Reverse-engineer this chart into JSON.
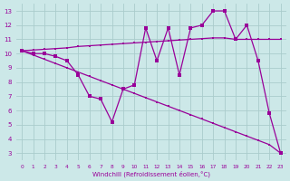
{
  "line_zigzag": [
    10.2,
    10.0,
    10.0,
    9.8,
    9.5,
    8.5,
    7.0,
    6.8,
    5.2,
    7.5,
    7.8,
    11.8,
    9.5,
    11.8,
    8.5,
    11.8,
    12.0,
    13.0,
    13.0,
    11.0,
    12.0,
    9.5,
    5.8,
    3.0
  ],
  "line_upper": [
    10.2,
    10.25,
    10.3,
    10.35,
    10.4,
    10.5,
    10.55,
    10.6,
    10.65,
    10.7,
    10.75,
    10.8,
    10.85,
    10.9,
    10.95,
    11.0,
    11.05,
    11.1,
    11.1,
    11.0,
    11.0,
    11.0,
    11.0,
    11.0
  ],
  "line_diagonal": [
    10.2,
    9.9,
    9.6,
    9.3,
    9.0,
    8.7,
    8.4,
    8.1,
    7.8,
    7.5,
    7.2,
    6.9,
    6.6,
    6.3,
    6.0,
    5.7,
    5.4,
    5.1,
    4.8,
    4.5,
    4.2,
    3.9,
    3.6,
    3.0
  ],
  "x": [
    0,
    1,
    2,
    3,
    4,
    5,
    6,
    7,
    8,
    9,
    10,
    11,
    12,
    13,
    14,
    15,
    16,
    17,
    18,
    19,
    20,
    21,
    22,
    23
  ],
  "line_color": "#990099",
  "bg_color": "#cce8e8",
  "grid_color": "#aacccc",
  "xlabel": "Windchill (Refroidissement éolien,°C)",
  "ylim": [
    2.5,
    13.5
  ],
  "xlim": [
    -0.5,
    23.5
  ],
  "yticks": [
    3,
    4,
    5,
    6,
    7,
    8,
    9,
    10,
    11,
    12,
    13
  ],
  "xticks": [
    0,
    1,
    2,
    3,
    4,
    5,
    6,
    7,
    8,
    9,
    10,
    11,
    12,
    13,
    14,
    15,
    16,
    17,
    18,
    19,
    20,
    21,
    22,
    23
  ]
}
